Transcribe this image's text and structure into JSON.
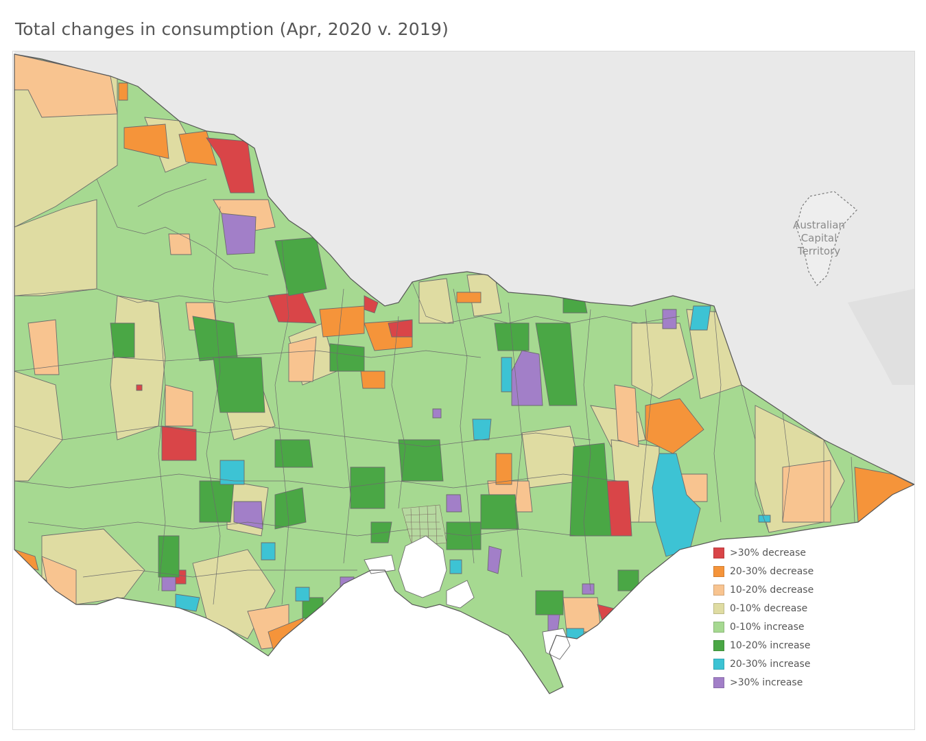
{
  "title": "Total changes in consumption (Apr, 2020 v. 2019)",
  "region_label": [
    "Australian",
    "Capital",
    "Territory"
  ],
  "legend": [
    {
      "label": ">30% decrease",
      "color": "#d94548"
    },
    {
      "label": "20-30% decrease",
      "color": "#f5943a"
    },
    {
      "label": "10-20% decrease",
      "color": "#f8c490"
    },
    {
      "label": "0-10% decrease",
      "color": "#dfdca2"
    },
    {
      "label": "0-10% increase",
      "color": "#a6d991"
    },
    {
      "label": "10-20% increase",
      "color": "#4aa745"
    },
    {
      "label": "20-30% increase",
      "color": "#3dc3d4"
    },
    {
      "label": ">30% increase",
      "color": "#a27fc8"
    }
  ],
  "colors": {
    "land": "#a6d991",
    "background_land": "#e8e8e8",
    "water": "#ffffff",
    "border": "#6b6b6b"
  }
}
